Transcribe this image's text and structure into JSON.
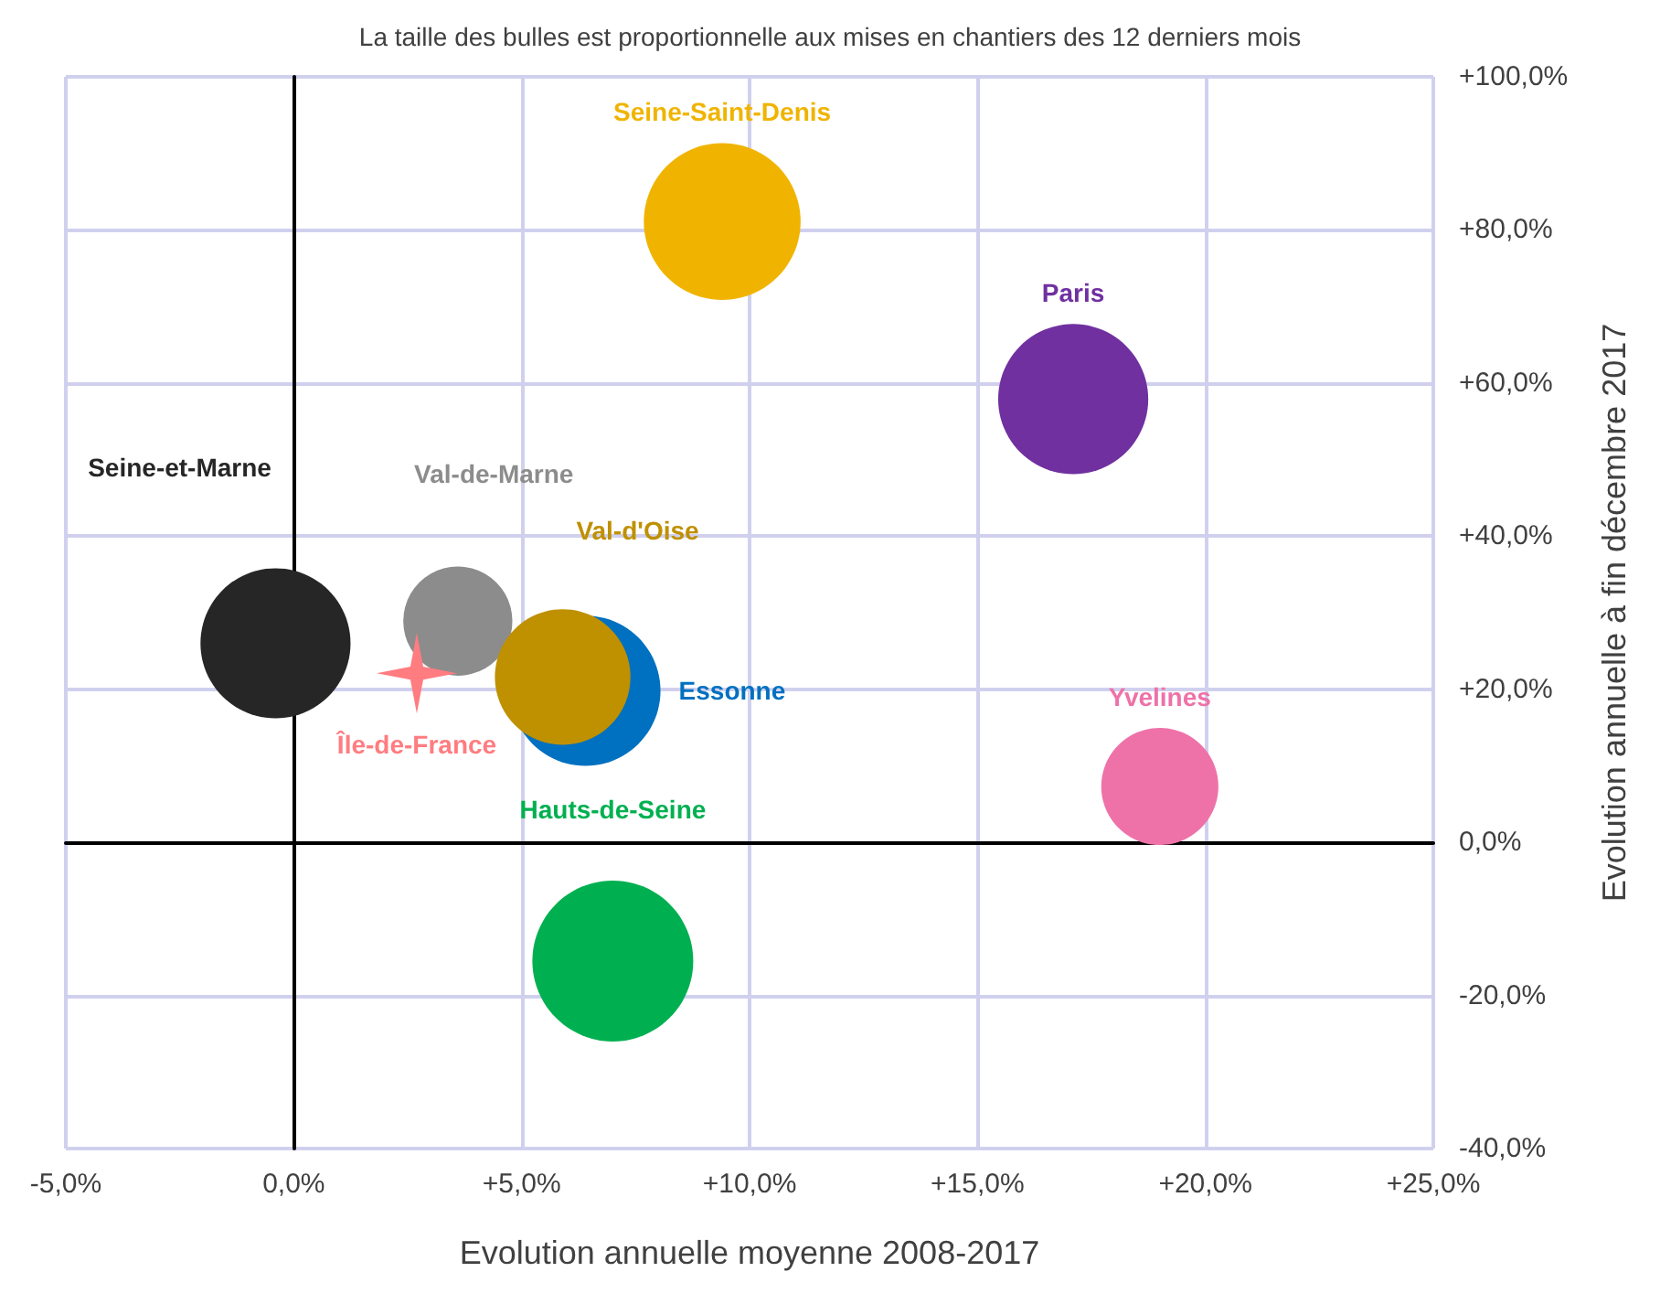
{
  "chart_data": {
    "type": "bubble",
    "subtitle": "La taille des bulles est proportionnelle aux mises en chantiers des 12 derniers mois",
    "xlabel": "Evolution annuelle moyenne 2008-2017",
    "ylabel": "Evolution annuelle à fin décembre 2017",
    "xlim": [
      -5,
      25
    ],
    "xticks": [
      {
        "value": -5,
        "label": "-5,0%"
      },
      {
        "value": 0,
        "label": "0,0%"
      },
      {
        "value": 5,
        "label": "+5,0%"
      },
      {
        "value": 10,
        "label": "+10,0%"
      },
      {
        "value": 15,
        "label": "+15,0%"
      },
      {
        "value": 20,
        "label": "+20,0%"
      },
      {
        "value": 25,
        "label": "+25,0%"
      }
    ],
    "ylim": [
      -40,
      100
    ],
    "yticks": [
      {
        "value": -40,
        "label": "-40,0%"
      },
      {
        "value": -20,
        "label": "-20,0%"
      },
      {
        "value": 0,
        "label": "0,0%"
      },
      {
        "value": 20,
        "label": "+20,0%"
      },
      {
        "value": 40,
        "label": "+40,0%"
      },
      {
        "value": 60,
        "label": "+60,0%"
      },
      {
        "value": 80,
        "label": "+80,0%"
      },
      {
        "value": 100,
        "label": "+100,0%"
      }
    ],
    "grid": true,
    "legend": false,
    "series": [
      {
        "name": "Seine-Saint-Denis",
        "color": "#f0b400",
        "x": [
          9.4
        ],
        "values": [
          81.1
        ],
        "sizes": [
          0.95
        ]
      },
      {
        "name": "Paris",
        "color": "#7030a0",
        "x": [
          17.1
        ],
        "values": [
          57.9
        ],
        "sizes": [
          0.87
        ]
      },
      {
        "name": "Seine-et-Marne",
        "color": "#262626",
        "x": [
          -0.4
        ],
        "values": [
          26.0
        ],
        "sizes": [
          0.87
        ]
      },
      {
        "name": "Val-de-Marne",
        "color": "#8c8c8c",
        "x": [
          3.6
        ],
        "values": [
          28.9
        ],
        "sizes": [
          0.46
        ]
      },
      {
        "name": "Essonne",
        "color": "#0070c0",
        "x": [
          6.4
        ],
        "values": [
          19.8
        ],
        "sizes": [
          0.87
        ]
      },
      {
        "name": "Val-d'Oise",
        "color": "#bf9000",
        "x": [
          5.9
        ],
        "values": [
          21.6
        ],
        "sizes": [
          0.71
        ]
      },
      {
        "name": "Île-de-France",
        "type": "scatter",
        "marker": "star",
        "color": "#ff7c80",
        "x": [
          2.7
        ],
        "values": [
          22.1
        ]
      },
      {
        "name": "Yvelines",
        "color": "#ee72a8",
        "x": [
          19.0
        ],
        "values": [
          7.3
        ],
        "sizes": [
          0.53
        ]
      },
      {
        "name": "Hauts-de-Seine",
        "color": "#00b050",
        "x": [
          7.0
        ],
        "values": [
          -15.5
        ],
        "sizes": [
          1
        ]
      }
    ]
  }
}
